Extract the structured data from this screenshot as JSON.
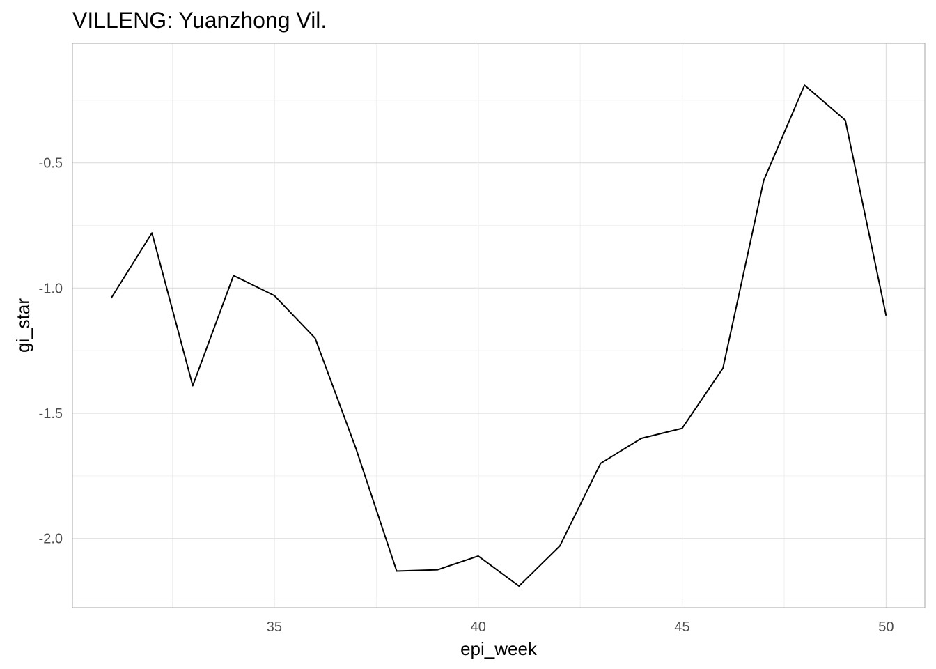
{
  "chart_data": {
    "type": "line",
    "title": "VILLENG: Yuanzhong Vil.",
    "xlabel": "epi_week",
    "ylabel": "gi_star",
    "x": [
      31,
      32,
      33,
      34,
      35,
      36,
      37,
      38,
      39,
      40,
      41,
      42,
      43,
      44,
      45,
      46,
      47,
      48,
      49,
      50
    ],
    "series": [
      {
        "values": [
          -1.04,
          -0.78,
          -1.39,
          -0.95,
          -1.03,
          -1.2,
          -1.64,
          -2.13,
          -2.125,
          -2.07,
          -2.19,
          -2.03,
          -1.7,
          -1.6,
          -1.56,
          -1.32,
          -0.57,
          -0.19,
          -0.33,
          -1.11
        ]
      }
    ],
    "x_ticks": [
      35,
      40,
      45,
      50
    ],
    "x_tick_labels": [
      "35",
      "40",
      "45",
      "50"
    ],
    "y_ticks": [
      -0.5,
      -1.0,
      -1.5,
      -2.0
    ],
    "y_tick_labels": [
      "-0.5",
      "-1.0",
      "-1.5",
      "-2.0"
    ],
    "xlim": [
      30.05,
      50.95
    ],
    "ylim": [
      -2.2762,
      -0.0224
    ],
    "grid": true,
    "legend": "none",
    "colors": {
      "line": "#000000",
      "grid_major": "#dedede",
      "grid_minor": "#ececec",
      "frame": "#b3b3b3"
    }
  }
}
